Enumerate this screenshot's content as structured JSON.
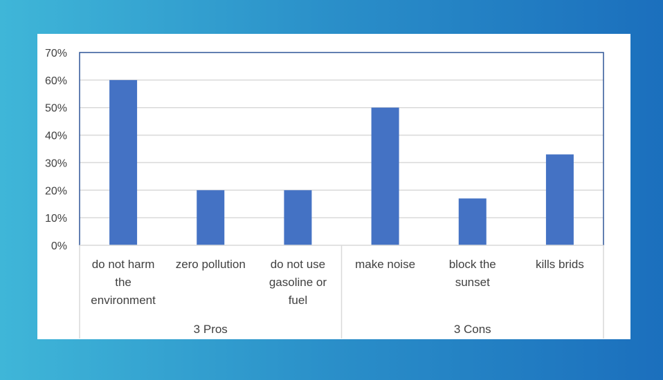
{
  "colors": {
    "bar": "#4472c4",
    "grid": "#d9d9d9",
    "plot_border": "#2f5597",
    "panel": "#ffffff"
  },
  "chart_data": {
    "type": "bar",
    "categories": [
      [
        "do not harm",
        "the",
        "environment"
      ],
      [
        "zero pollution"
      ],
      [
        "do not use",
        "gasoline or",
        "fuel"
      ],
      [
        "make noise"
      ],
      [
        "block the",
        "sunset"
      ],
      [
        "kills brids"
      ]
    ],
    "groups": [
      {
        "label": "3 Pros",
        "span": 3
      },
      {
        "label": "3 Cons",
        "span": 3
      }
    ],
    "values": [
      0.6,
      0.2,
      0.2,
      0.5,
      0.17,
      0.33
    ],
    "ylim": [
      0,
      0.7
    ],
    "yticks": [
      "0%",
      "10%",
      "20%",
      "30%",
      "40%",
      "50%",
      "60%",
      "70%"
    ],
    "grid": true,
    "legend": "none"
  }
}
